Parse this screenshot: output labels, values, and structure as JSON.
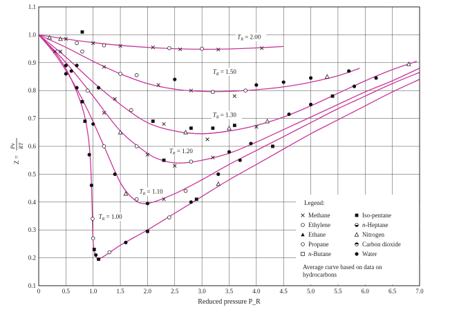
{
  "chart_data": {
    "type": "line",
    "title": "",
    "xlabel": "Reduced pressure P_R",
    "ylabel_numer": "Pv",
    "ylabel_denom": "RT",
    "ylabel_prefix": "Z =",
    "xlim": [
      0,
      7.0
    ],
    "ylim": [
      0.1,
      1.1
    ],
    "grid": true,
    "x_ticks": [
      0,
      0.5,
      1.0,
      1.5,
      2.0,
      2.5,
      3.0,
      3.5,
      4.0,
      4.5,
      5.0,
      5.5,
      6.0,
      6.5,
      7.0
    ],
    "x_tick_labels": [
      "0",
      "0.5",
      "1.0",
      "1.5",
      "2.0",
      "2.5",
      "3.0",
      "3.5",
      "4.0",
      "4.5",
      "5.0",
      "5.5",
      "6.0",
      "6.5",
      "7.0"
    ],
    "y_ticks": [
      0.1,
      0.2,
      0.3,
      0.4,
      0.5,
      0.6,
      0.7,
      0.8,
      0.9,
      1.0,
      1.1
    ],
    "y_tick_labels": [
      "0.1",
      "0.2",
      "0.3",
      "0.4",
      "0.5",
      "0.6",
      "0.7",
      "0.8",
      "0.9",
      "1.0",
      "1.1"
    ],
    "curve_color": "#c8349a",
    "series": [
      {
        "name": "T_R = 2.00",
        "label_parts": [
          "T",
          "R",
          " = 2.00"
        ],
        "label_at": [
          3.65,
          0.985
        ],
        "points": [
          [
            0,
            1.0
          ],
          [
            0.5,
            0.985
          ],
          [
            1.0,
            0.972
          ],
          [
            1.5,
            0.962
          ],
          [
            2.0,
            0.955
          ],
          [
            2.5,
            0.95
          ],
          [
            3.0,
            0.948
          ],
          [
            3.5,
            0.949
          ],
          [
            4.0,
            0.953
          ],
          [
            4.5,
            0.958
          ]
        ]
      },
      {
        "name": "T_R = 1.50",
        "label_parts": [
          "T",
          "R",
          " = 1.50"
        ],
        "label_at": [
          3.2,
          0.86
        ],
        "points": [
          [
            0,
            1.0
          ],
          [
            0.5,
            0.955
          ],
          [
            1.0,
            0.905
          ],
          [
            1.5,
            0.86
          ],
          [
            2.0,
            0.825
          ],
          [
            2.5,
            0.805
          ],
          [
            3.0,
            0.797
          ],
          [
            3.5,
            0.797
          ],
          [
            4.0,
            0.803
          ],
          [
            4.5,
            0.813
          ],
          [
            5.0,
            0.83
          ],
          [
            5.5,
            0.853
          ],
          [
            5.9,
            0.88
          ]
        ]
      },
      {
        "name": "T_R = 1.30",
        "label_parts": [
          "T",
          "R",
          " = 1.30"
        ],
        "label_at": [
          3.2,
          0.705
        ],
        "points": [
          [
            0,
            1.0
          ],
          [
            0.5,
            0.92
          ],
          [
            1.0,
            0.83
          ],
          [
            1.5,
            0.75
          ],
          [
            2.0,
            0.685
          ],
          [
            2.5,
            0.655
          ],
          [
            3.0,
            0.645
          ],
          [
            3.5,
            0.655
          ],
          [
            4.0,
            0.675
          ],
          [
            4.5,
            0.705
          ],
          [
            5.0,
            0.745
          ],
          [
            5.5,
            0.79
          ],
          [
            6.0,
            0.835
          ],
          [
            6.5,
            0.875
          ],
          [
            6.95,
            0.905
          ]
        ]
      },
      {
        "name": "T_R = 1.20",
        "label_parts": [
          "T",
          "R",
          " = 1.20"
        ],
        "label_at": [
          2.4,
          0.575
        ],
        "points": [
          [
            0,
            1.0
          ],
          [
            0.5,
            0.9
          ],
          [
            1.0,
            0.78
          ],
          [
            1.5,
            0.655
          ],
          [
            2.0,
            0.575
          ],
          [
            2.3,
            0.548
          ],
          [
            2.6,
            0.54
          ],
          [
            3.0,
            0.55
          ],
          [
            3.5,
            0.575
          ],
          [
            4.0,
            0.615
          ],
          [
            4.5,
            0.66
          ],
          [
            5.0,
            0.705
          ],
          [
            5.5,
            0.75
          ],
          [
            6.0,
            0.795
          ],
          [
            6.5,
            0.835
          ],
          [
            7.0,
            0.88
          ]
        ]
      },
      {
        "name": "T_R = 1.10",
        "label_parts": [
          "T",
          "R",
          " = 1.10"
        ],
        "label_at": [
          1.85,
          0.43
        ],
        "points": [
          [
            0,
            1.0
          ],
          [
            0.3,
            0.93
          ],
          [
            0.6,
            0.84
          ],
          [
            0.9,
            0.73
          ],
          [
            1.2,
            0.6
          ],
          [
            1.5,
            0.47
          ],
          [
            1.75,
            0.41
          ],
          [
            2.0,
            0.395
          ],
          [
            2.5,
            0.43
          ],
          [
            3.0,
            0.48
          ],
          [
            3.5,
            0.535
          ],
          [
            4.0,
            0.585
          ],
          [
            4.5,
            0.635
          ],
          [
            5.0,
            0.685
          ],
          [
            5.5,
            0.735
          ],
          [
            6.0,
            0.78
          ],
          [
            6.5,
            0.825
          ],
          [
            7.0,
            0.865
          ]
        ]
      },
      {
        "name": "T_R = 1.00",
        "label_parts": [
          "T",
          "R",
          " = 1.00"
        ],
        "label_at": [
          1.1,
          0.34
        ],
        "points": [
          [
            0,
            1.0
          ],
          [
            0.2,
            0.96
          ],
          [
            0.4,
            0.91
          ],
          [
            0.6,
            0.84
          ],
          [
            0.8,
            0.74
          ],
          [
            0.9,
            0.65
          ],
          [
            0.95,
            0.55
          ],
          [
            0.98,
            0.4
          ],
          [
            1.0,
            0.26
          ],
          [
            1.05,
            0.205
          ],
          [
            1.15,
            0.2
          ],
          [
            1.5,
            0.245
          ],
          [
            2.0,
            0.3
          ],
          [
            2.5,
            0.36
          ],
          [
            3.0,
            0.42
          ],
          [
            3.5,
            0.48
          ],
          [
            4.0,
            0.535
          ],
          [
            4.5,
            0.59
          ],
          [
            5.0,
            0.645
          ],
          [
            5.5,
            0.695
          ],
          [
            6.0,
            0.745
          ],
          [
            6.5,
            0.795
          ],
          [
            7.0,
            0.84
          ]
        ]
      }
    ],
    "data_markers": [
      {
        "m": "x",
        "x": 0.5,
        "y": 0.985
      },
      {
        "m": "x",
        "x": 1.0,
        "y": 0.97
      },
      {
        "m": "x",
        "x": 1.5,
        "y": 0.96
      },
      {
        "m": "x",
        "x": 2.1,
        "y": 0.955
      },
      {
        "m": "x",
        "x": 2.6,
        "y": 0.948
      },
      {
        "m": "x",
        "x": 3.3,
        "y": 0.947
      },
      {
        "m": "x",
        "x": 4.1,
        "y": 0.952
      },
      {
        "m": "o",
        "x": 0.7,
        "y": 0.97
      },
      {
        "m": "o",
        "x": 1.2,
        "y": 0.962
      },
      {
        "m": "o",
        "x": 2.4,
        "y": 0.952
      },
      {
        "m": "o",
        "x": 3.0,
        "y": 0.95
      },
      {
        "m": "sq",
        "x": 0.8,
        "y": 1.01
      },
      {
        "m": "t",
        "x": 0.2,
        "y": 0.99
      },
      {
        "m": "t",
        "x": 0.4,
        "y": 0.985
      },
      {
        "m": "o",
        "x": 0.8,
        "y": 0.94
      },
      {
        "m": "x",
        "x": 1.2,
        "y": 0.885
      },
      {
        "m": "o",
        "x": 1.5,
        "y": 0.86
      },
      {
        "m": "o",
        "x": 1.8,
        "y": 0.855
      },
      {
        "m": "x",
        "x": 2.2,
        "y": 0.82
      },
      {
        "m": "d",
        "x": 2.5,
        "y": 0.84
      },
      {
        "m": "x",
        "x": 2.8,
        "y": 0.8
      },
      {
        "m": "o",
        "x": 3.2,
        "y": 0.795
      },
      {
        "m": "x",
        "x": 3.6,
        "y": 0.78
      },
      {
        "m": "o",
        "x": 3.8,
        "y": 0.8
      },
      {
        "m": "d",
        "x": 4.0,
        "y": 0.82
      },
      {
        "m": "d",
        "x": 4.5,
        "y": 0.83
      },
      {
        "m": "d",
        "x": 5.0,
        "y": 0.845
      },
      {
        "m": "t",
        "x": 5.3,
        "y": 0.85
      },
      {
        "m": "d",
        "x": 5.7,
        "y": 0.87
      },
      {
        "m": "x",
        "x": 0.4,
        "y": 0.94
      },
      {
        "m": "d",
        "x": 0.7,
        "y": 0.89
      },
      {
        "m": "d",
        "x": 1.1,
        "y": 0.81
      },
      {
        "m": "x",
        "x": 1.4,
        "y": 0.77
      },
      {
        "m": "o",
        "x": 1.7,
        "y": 0.73
      },
      {
        "m": "sq",
        "x": 2.1,
        "y": 0.69
      },
      {
        "m": "x",
        "x": 2.3,
        "y": 0.68
      },
      {
        "m": "t",
        "x": 2.7,
        "y": 0.65
      },
      {
        "m": "sq",
        "x": 2.8,
        "y": 0.665
      },
      {
        "m": "x",
        "x": 3.1,
        "y": 0.625
      },
      {
        "m": "sq",
        "x": 3.2,
        "y": 0.665
      },
      {
        "m": "t",
        "x": 3.5,
        "y": 0.665
      },
      {
        "m": "sq",
        "x": 3.6,
        "y": 0.675
      },
      {
        "m": "x",
        "x": 4.0,
        "y": 0.67
      },
      {
        "m": "t",
        "x": 4.2,
        "y": 0.69
      },
      {
        "m": "d",
        "x": 4.6,
        "y": 0.715
      },
      {
        "m": "d",
        "x": 5.0,
        "y": 0.75
      },
      {
        "m": "sq",
        "x": 5.4,
        "y": 0.78
      },
      {
        "m": "d",
        "x": 5.8,
        "y": 0.815
      },
      {
        "m": "d",
        "x": 6.2,
        "y": 0.845
      },
      {
        "m": "t",
        "x": 6.8,
        "y": 0.895
      },
      {
        "m": "x",
        "x": 0.3,
        "y": 0.94
      },
      {
        "m": "d",
        "x": 0.6,
        "y": 0.87
      },
      {
        "m": "o",
        "x": 0.9,
        "y": 0.8
      },
      {
        "m": "x",
        "x": 1.2,
        "y": 0.72
      },
      {
        "m": "t",
        "x": 1.5,
        "y": 0.65
      },
      {
        "m": "o",
        "x": 1.8,
        "y": 0.6
      },
      {
        "m": "x",
        "x": 2.0,
        "y": 0.57
      },
      {
        "m": "sq",
        "x": 2.3,
        "y": 0.55
      },
      {
        "m": "x",
        "x": 2.5,
        "y": 0.53
      },
      {
        "m": "o",
        "x": 2.8,
        "y": 0.545
      },
      {
        "m": "x",
        "x": 3.2,
        "y": 0.56
      },
      {
        "m": "d",
        "x": 3.5,
        "y": 0.58
      },
      {
        "m": "d",
        "x": 3.9,
        "y": 0.61
      },
      {
        "m": "sq",
        "x": 4.3,
        "y": 0.6
      },
      {
        "m": "d",
        "x": 0.5,
        "y": 0.86
      },
      {
        "m": "sq",
        "x": 0.8,
        "y": 0.76
      },
      {
        "m": "d",
        "x": 1.0,
        "y": 0.68
      },
      {
        "m": "o",
        "x": 1.2,
        "y": 0.6
      },
      {
        "m": "d",
        "x": 1.4,
        "y": 0.5
      },
      {
        "m": "t",
        "x": 1.6,
        "y": 0.43
      },
      {
        "m": "o",
        "x": 1.8,
        "y": 0.41
      },
      {
        "m": "d",
        "x": 2.0,
        "y": 0.395
      },
      {
        "m": "x",
        "x": 2.3,
        "y": 0.41
      },
      {
        "m": "o",
        "x": 2.7,
        "y": 0.44
      },
      {
        "m": "sq",
        "x": 2.9,
        "y": 0.41
      },
      {
        "m": "d",
        "x": 3.3,
        "y": 0.5
      },
      {
        "m": "d",
        "x": 3.7,
        "y": 0.55
      },
      {
        "m": "d",
        "x": 0.5,
        "y": 0.89
      },
      {
        "m": "d",
        "x": 0.7,
        "y": 0.81
      },
      {
        "m": "sq",
        "x": 0.85,
        "y": 0.69
      },
      {
        "m": "d",
        "x": 0.93,
        "y": 0.57
      },
      {
        "m": "d",
        "x": 0.97,
        "y": 0.46
      },
      {
        "m": "o",
        "x": 0.99,
        "y": 0.34
      },
      {
        "m": "o",
        "x": 1.0,
        "y": 0.27
      },
      {
        "m": "sq",
        "x": 1.02,
        "y": 0.23
      },
      {
        "m": "d",
        "x": 1.05,
        "y": 0.21
      },
      {
        "m": "sq",
        "x": 1.1,
        "y": 0.195
      },
      {
        "m": "o",
        "x": 1.3,
        "y": 0.22
      },
      {
        "m": "d",
        "x": 1.6,
        "y": 0.255
      },
      {
        "m": "sq",
        "x": 2.0,
        "y": 0.295
      },
      {
        "m": "o",
        "x": 2.4,
        "y": 0.345
      },
      {
        "m": "d",
        "x": 2.8,
        "y": 0.4
      },
      {
        "m": "t",
        "x": 3.3,
        "y": 0.465
      }
    ],
    "legend": {
      "title": "Legend:",
      "items": [
        {
          "marker": "x",
          "label": "Methane"
        },
        {
          "marker": "sq",
          "label": "Iso-pentane"
        },
        {
          "marker": "o",
          "label": "Ethylene"
        },
        {
          "marker": "half",
          "label": "n-Heptane",
          "italic_prefix": "n"
        },
        {
          "marker": "tfill",
          "label": "Ethane"
        },
        {
          "marker": "t",
          "label": "Nitrogen"
        },
        {
          "marker": "o",
          "label": "Propane"
        },
        {
          "marker": "half2",
          "label": "Carbon dioxide"
        },
        {
          "marker": "osq",
          "label": "n-Butane",
          "italic_prefix": "n"
        },
        {
          "marker": "d",
          "label": "Water"
        }
      ],
      "note": [
        "Average curve based on data on",
        "hydrocarbons"
      ]
    }
  }
}
